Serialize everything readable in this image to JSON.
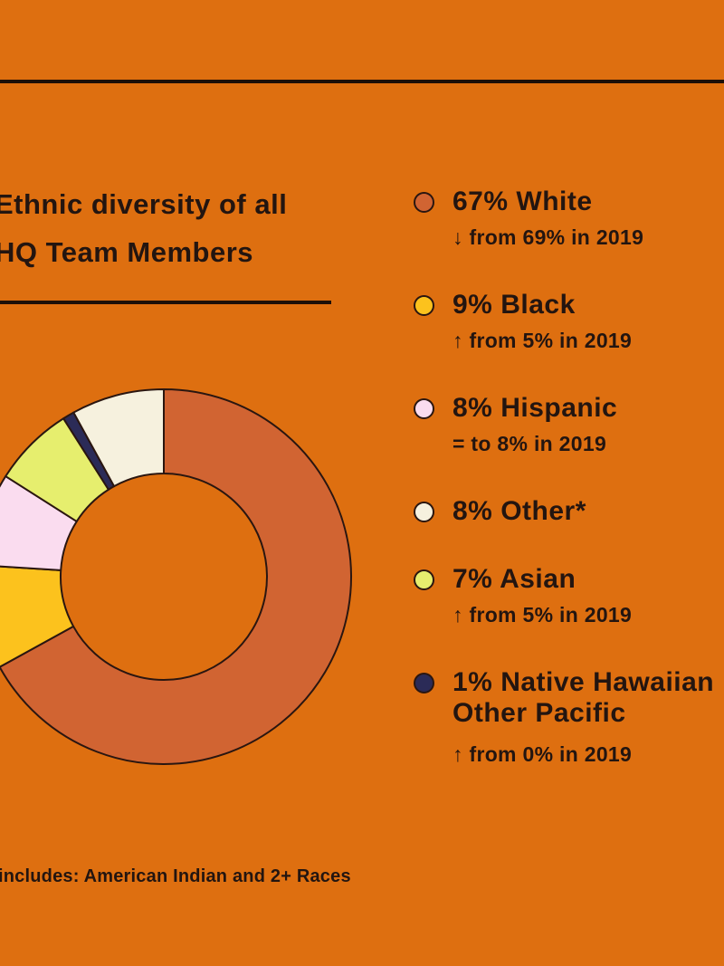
{
  "header": {
    "title_line1": "Ethnic diversity of all",
    "title_line2": "HQ Team Members"
  },
  "colors": {
    "background": "#de6f10",
    "ink": "#231510",
    "rule": "#1d0f08",
    "slice_stroke": "#2a1610"
  },
  "chart_data": {
    "type": "pie",
    "donut": true,
    "title": "Ethnic diversity of all HQ Team Members",
    "start_angle_deg": 0,
    "direction": "clockwise",
    "inner_radius_ratio": 0.55,
    "slices": [
      {
        "key": "white",
        "label": "White",
        "value": 67,
        "color": "#d16432"
      },
      {
        "key": "black",
        "label": "Black",
        "value": 9,
        "color": "#fcc21d"
      },
      {
        "key": "hispanic",
        "label": "Hispanic",
        "value": 8,
        "color": "#fadcef"
      },
      {
        "key": "asian",
        "label": "Asian",
        "value": 7,
        "color": "#e6ee6e"
      },
      {
        "key": "native",
        "label": "Native Hawaiian, Other Pacific",
        "value": 1,
        "color": "#2b2b57"
      },
      {
        "key": "other",
        "label": "Other*",
        "value": 8,
        "color": "#f6f1de"
      }
    ]
  },
  "legend": {
    "items": [
      {
        "key": "white",
        "label": "67% White",
        "change": "↓ from 69% in 2019",
        "color": "#d16432"
      },
      {
        "key": "black",
        "label": "9% Black",
        "change": "↑ from 5% in 2019",
        "color": "#fcc21d"
      },
      {
        "key": "hispanic",
        "label": "8% Hispanic",
        "change": "= to 8% in 2019",
        "color": "#fadcef"
      },
      {
        "key": "other",
        "label": "8% Other*",
        "color": "#f6f1de"
      },
      {
        "key": "asian",
        "label": "7% Asian",
        "change": "↑ from 5% in 2019",
        "color": "#e6ee6e"
      },
      {
        "key": "native",
        "label": "1% Native Hawaiian",
        "label2": "Other Pacific",
        "change": "↑ from 0% in 2019",
        "color": "#2b2b57"
      }
    ]
  },
  "footer": {
    "note": "includes: American Indian and 2+ Races"
  }
}
